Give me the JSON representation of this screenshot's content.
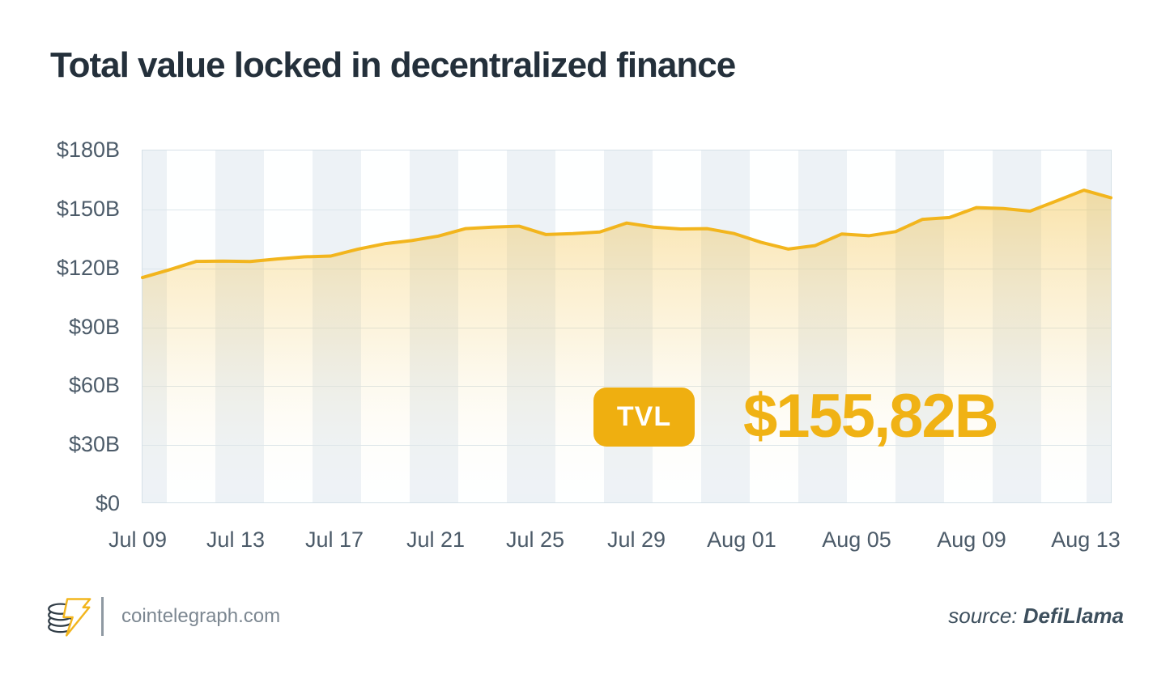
{
  "title": "Total value locked in decentralized finance",
  "chart_data": {
    "type": "area",
    "title": "Total value locked in decentralized finance",
    "x": [
      "Jul 09",
      "Jul 10",
      "Jul 11",
      "Jul 12",
      "Jul 13",
      "Jul 14",
      "Jul 15",
      "Jul 16",
      "Jul 17",
      "Jul 18",
      "Jul 19",
      "Jul 20",
      "Jul 21",
      "Jul 22",
      "Jul 23",
      "Jul 24",
      "Jul 25",
      "Jul 26",
      "Jul 27",
      "Jul 28",
      "Jul 29",
      "Jul 30",
      "Jul 31",
      "Aug 01",
      "Aug 02",
      "Aug 03",
      "Aug 04",
      "Aug 05",
      "Aug 06",
      "Aug 07",
      "Aug 08",
      "Aug 09",
      "Aug 10",
      "Aug 11",
      "Aug 12",
      "Aug 13",
      "Aug 14"
    ],
    "values": [
      115.0,
      119.0,
      123.3,
      123.4,
      123.2,
      124.5,
      125.6,
      126.0,
      129.5,
      132.3,
      133.9,
      136.2,
      140.0,
      140.8,
      141.3,
      137.0,
      137.5,
      138.3,
      142.9,
      140.8,
      139.9,
      140.0,
      137.5,
      133.0,
      129.6,
      131.3,
      137.3,
      136.4,
      138.5,
      144.8,
      145.7,
      150.8,
      150.3,
      149.0,
      154.3,
      159.7,
      155.82
    ],
    "series_name": "TVL",
    "last_value_label": "$155,82B",
    "xlabel": "",
    "ylabel": "",
    "ylim": [
      0,
      180
    ],
    "y_ticks": [
      "$180B",
      "$150B",
      "$120B",
      "$90B",
      "$60B",
      "$30B",
      "$0"
    ],
    "x_tick_labels": [
      "Jul 09",
      "Jul 13",
      "Jul 17",
      "Jul 21",
      "Jul 25",
      "Jul 29",
      "Aug 01",
      "Aug 05",
      "Aug 09",
      "Aug 13"
    ],
    "x_tick_percents": [
      -0.42,
      9.68,
      19.87,
      30.3,
      40.57,
      51.0,
      61.85,
      73.71,
      85.56,
      97.33
    ],
    "grid": "horizontal gridlines on, vertical alternating background stripes",
    "legend": "none"
  },
  "overlay": {
    "badge_label": "TVL",
    "value": "$155,82B"
  },
  "footer": {
    "brand": "cointelegraph.com",
    "source_prefix": "source: ",
    "source_name": "DefiLlama"
  },
  "colors": {
    "accent_gold": "#F0B214",
    "badge_gold": "#EFAF10",
    "line_gold": "#F2B51D",
    "title_text": "#24303B",
    "axis_text": "#4C5B69",
    "gridline": "#DCE6EC",
    "stripe": "#EDF2F6",
    "plot_border": "#D5E0E7",
    "footer_text": "#7C8791",
    "source_text": "#3D4F5D",
    "badge_text": "#FFFFFF"
  }
}
